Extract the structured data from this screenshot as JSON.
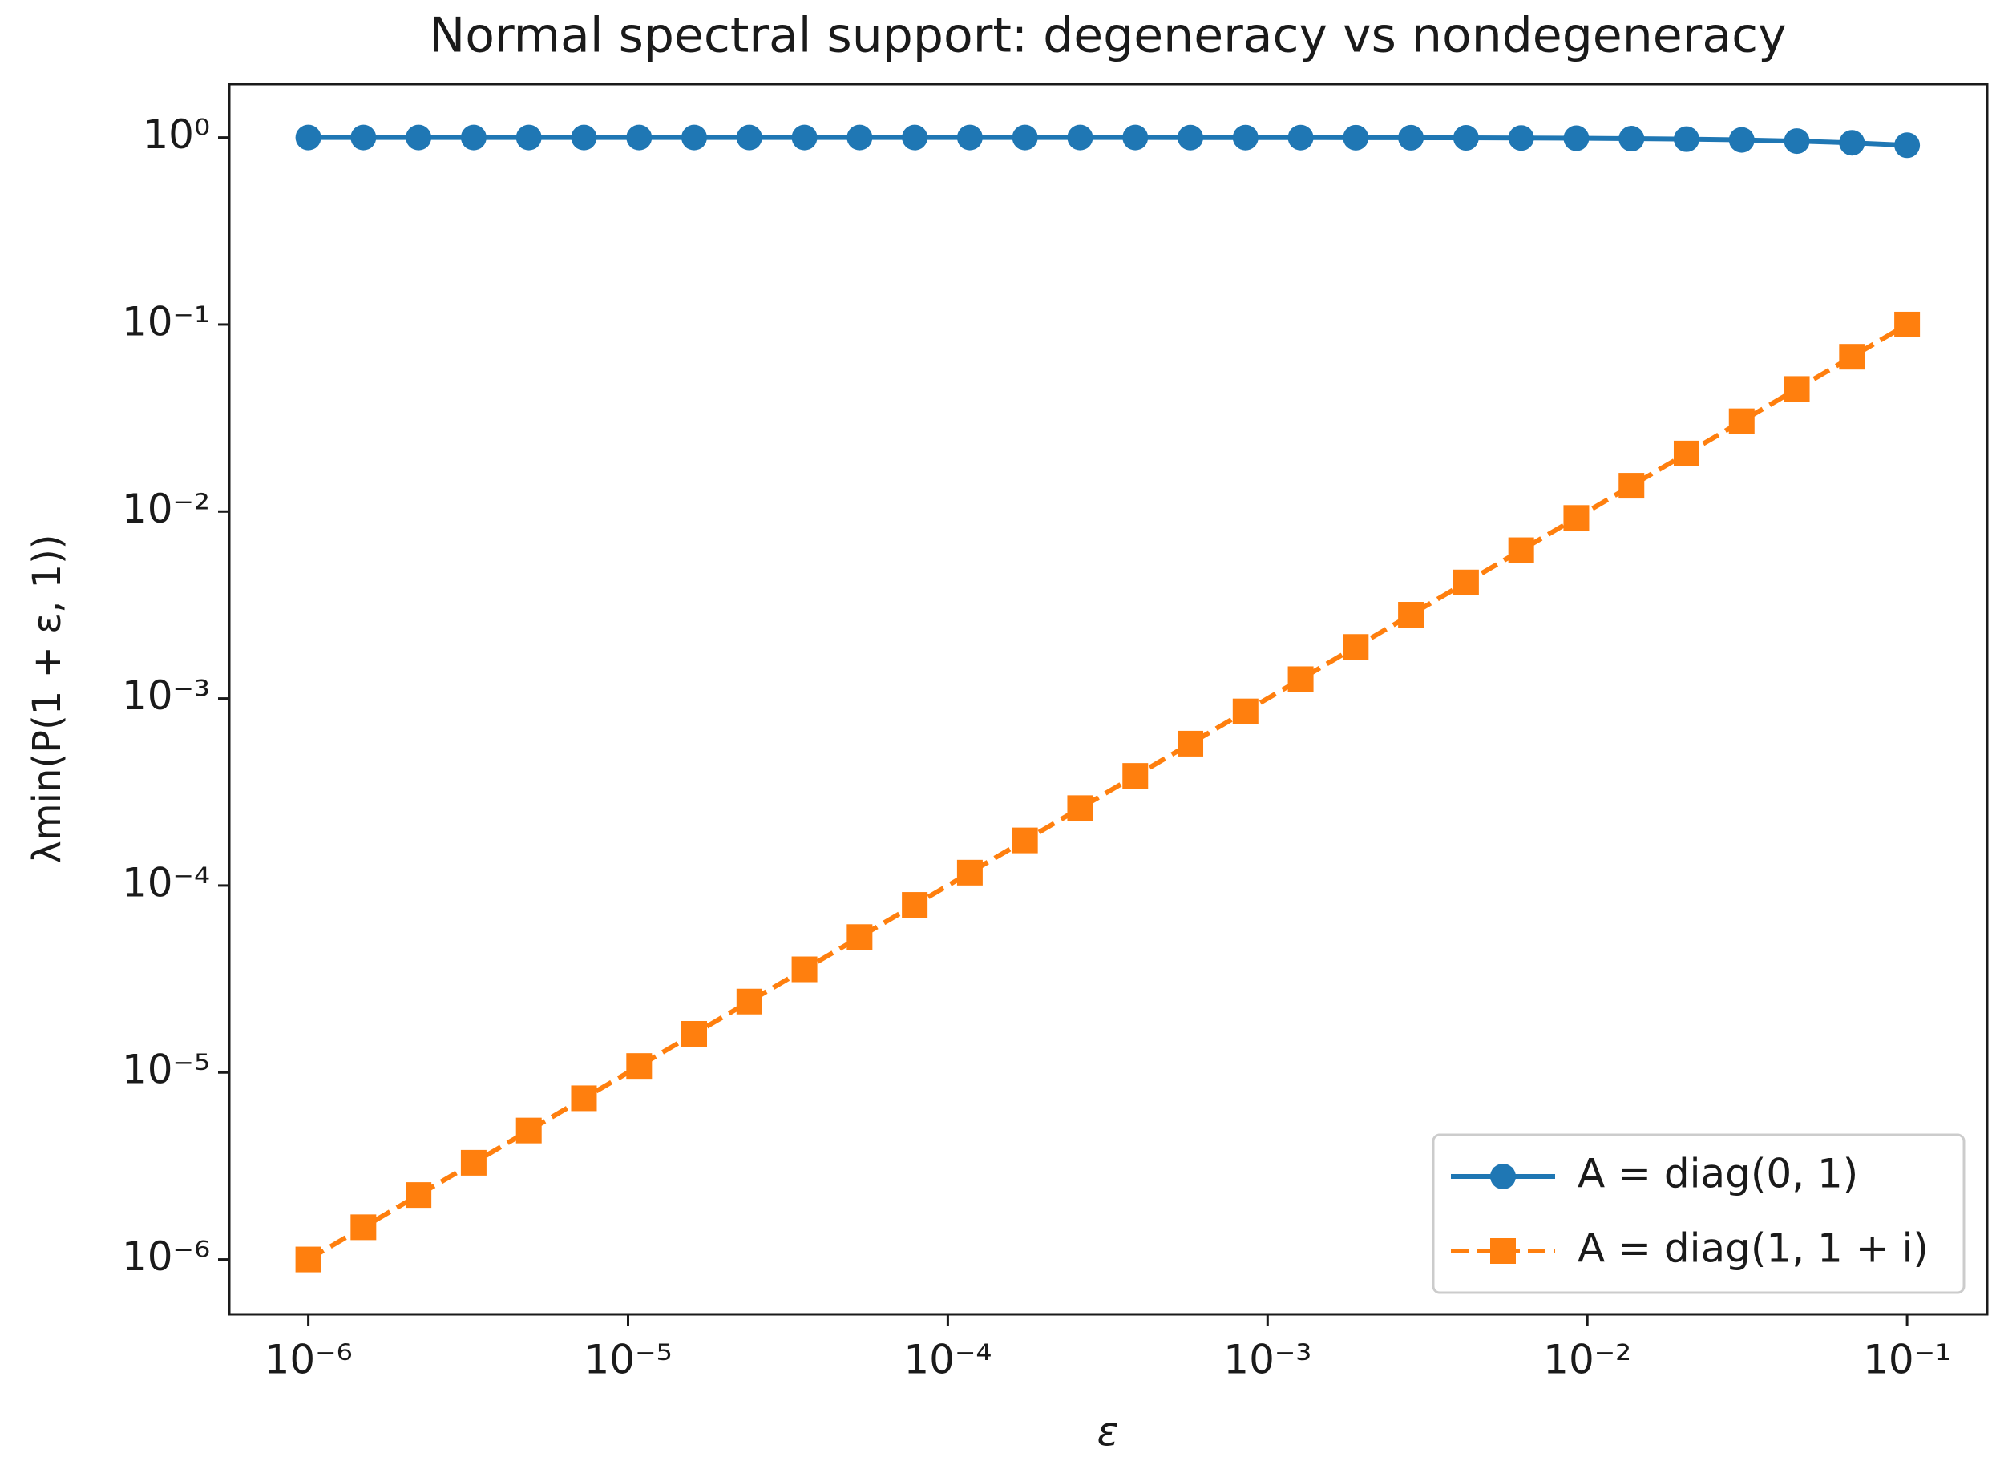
{
  "chart_data": {
    "type": "line",
    "title": "Normal spectral support: degeneracy vs nondegeneracy",
    "x_label": "ε",
    "y_label": "λmin(P(1 + ε, 1))",
    "x_scale": "log",
    "y_scale": "log",
    "x": [
      1e-06,
      1.487e-06,
      2.212e-06,
      3.29e-06,
      4.894e-06,
      7.279e-06,
      1.083e-05,
      1.61e-05,
      2.395e-05,
      3.562e-05,
      5.298e-05,
      7.88e-05,
      0.0001172,
      0.0001743,
      0.0002593,
      0.0003857,
      0.0005736,
      0.0008532,
      0.001269,
      0.001887,
      0.002807,
      0.004175,
      0.00621,
      0.009237,
      0.01374,
      0.02043,
      0.03039,
      0.0452,
      0.06723,
      0.1
    ],
    "series": [
      {
        "name": "A = diag(0, 1)",
        "color": "#1f77b4",
        "marker": "circle",
        "dash": "solid",
        "values": [
          1,
          1,
          1,
          1,
          1,
          1,
          1,
          1,
          1,
          1,
          1,
          1,
          1,
          1,
          1,
          1,
          0.999,
          0.999,
          0.999,
          0.998,
          0.997,
          0.996,
          0.994,
          0.991,
          0.986,
          0.98,
          0.971,
          0.957,
          0.937,
          0.909
        ]
      },
      {
        "name": "A = diag(1, 1 + i)",
        "color": "#ff7f0e",
        "marker": "square",
        "dash": "dashed",
        "values": [
          1e-06,
          1.487e-06,
          2.212e-06,
          3.29e-06,
          4.894e-06,
          7.279e-06,
          1.083e-05,
          1.61e-05,
          2.395e-05,
          3.562e-05,
          5.298e-05,
          7.88e-05,
          0.0001172,
          0.0001743,
          0.0002593,
          0.0003857,
          0.0005736,
          0.0008532,
          0.001269,
          0.001887,
          0.002807,
          0.004175,
          0.00621,
          0.009237,
          0.01374,
          0.02043,
          0.03039,
          0.0452,
          0.06723,
          0.1
        ]
      }
    ],
    "xlim": [
      5.66e-07,
      0.178
    ],
    "ylim": [
      5.09e-07,
      1.93
    ],
    "xticks": [
      {
        "value": 1e-06,
        "label": "10⁻⁶"
      },
      {
        "value": 1e-05,
        "label": "10⁻⁵"
      },
      {
        "value": 0.0001,
        "label": "10⁻⁴"
      },
      {
        "value": 0.001,
        "label": "10⁻³"
      },
      {
        "value": 0.01,
        "label": "10⁻²"
      },
      {
        "value": 0.1,
        "label": "10⁻¹"
      }
    ],
    "yticks": [
      {
        "value": 1e-06,
        "label": "10⁻⁶"
      },
      {
        "value": 1e-05,
        "label": "10⁻⁵"
      },
      {
        "value": 0.0001,
        "label": "10⁻⁴"
      },
      {
        "value": 0.001,
        "label": "10⁻³"
      },
      {
        "value": 0.01,
        "label": "10⁻²"
      },
      {
        "value": 0.1,
        "label": "10⁻¹"
      },
      {
        "value": 1,
        "label": "10⁰"
      }
    ],
    "grid": false,
    "legend": "lower right"
  }
}
